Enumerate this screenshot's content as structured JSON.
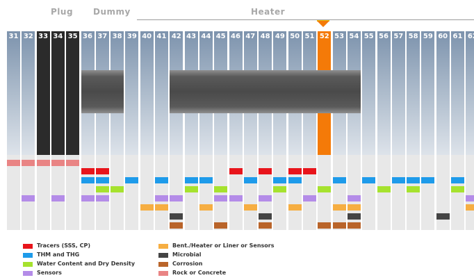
{
  "sections": [
    {
      "label": "Plug"
    },
    {
      "label": "Dummy"
    },
    {
      "label": "Heater"
    }
  ],
  "columns": [
    {
      "label": "31",
      "style": "normal"
    },
    {
      "label": "32",
      "style": "normal"
    },
    {
      "label": "33",
      "style": "dark"
    },
    {
      "label": "34",
      "style": "dark"
    },
    {
      "label": "35",
      "style": "dark"
    },
    {
      "label": "36",
      "style": "normal"
    },
    {
      "label": "37",
      "style": "normal"
    },
    {
      "label": "38",
      "style": "normal"
    },
    {
      "label": "39",
      "style": "normal"
    },
    {
      "label": "40",
      "style": "normal"
    },
    {
      "label": "41",
      "style": "normal"
    },
    {
      "label": "42",
      "style": "normal"
    },
    {
      "label": "43",
      "style": "normal"
    },
    {
      "label": "44",
      "style": "normal"
    },
    {
      "label": "45",
      "style": "normal"
    },
    {
      "label": "46",
      "style": "normal"
    },
    {
      "label": "47",
      "style": "normal"
    },
    {
      "label": "48",
      "style": "normal"
    },
    {
      "label": "49",
      "style": "normal"
    },
    {
      "label": "50",
      "style": "normal"
    },
    {
      "label": "51",
      "style": "normal"
    },
    {
      "label": "52",
      "style": "highlight"
    },
    {
      "label": "53",
      "style": "normal"
    },
    {
      "label": "54",
      "style": "normal"
    },
    {
      "label": "55",
      "style": "normal"
    },
    {
      "label": "56",
      "style": "normal"
    },
    {
      "label": "57",
      "style": "normal"
    },
    {
      "label": "58",
      "style": "normal"
    },
    {
      "label": "59",
      "style": "normal"
    },
    {
      "label": "60",
      "style": "normal"
    },
    {
      "label": "61",
      "style": "normal"
    },
    {
      "label": "62",
      "style": "normal"
    }
  ],
  "cylinders": [
    {
      "name": "dummy",
      "from": "36",
      "to": "38"
    },
    {
      "name": "heater",
      "from": "42",
      "to": "54"
    }
  ],
  "highlight_marker": {
    "column": "52",
    "color": "#f47a08"
  },
  "colors": {
    "tracers": "#e8141b",
    "thm": "#1e9bea",
    "water": "#a6e22e",
    "sensors": "#b48ce8",
    "bent": "#f6ae42",
    "microbial": "#444444",
    "corrosion": "#b9642a",
    "rock": "#e98484",
    "highlight": "#f47a08",
    "dark": "#2b2b2b"
  },
  "sample_rows": [
    {
      "category": "rock",
      "columns": [
        "31",
        "32",
        "33",
        "34",
        "35"
      ]
    },
    {
      "category": "tracers",
      "columns": [
        "36",
        "37",
        "46",
        "48",
        "50",
        "51"
      ]
    },
    {
      "category": "thm",
      "columns": [
        "36",
        "37",
        "39",
        "41",
        "43",
        "44",
        "47",
        "49",
        "50",
        "53",
        "55",
        "57",
        "58",
        "59",
        "61"
      ]
    },
    {
      "category": "water",
      "columns": [
        "37",
        "38",
        "43",
        "45",
        "49",
        "52",
        "56",
        "58",
        "61"
      ]
    },
    {
      "category": "sensors",
      "columns": [
        "32",
        "34",
        "36",
        "37",
        "41",
        "42",
        "45",
        "46",
        "48",
        "51",
        "54",
        "62"
      ]
    },
    {
      "category": "bent",
      "columns": [
        "40",
        "41",
        "44",
        "47",
        "50",
        "53",
        "54",
        "62"
      ]
    },
    {
      "category": "microbial",
      "columns": [
        "42",
        "48",
        "54",
        "60"
      ]
    },
    {
      "category": "corrosion",
      "columns": [
        "42",
        "45",
        "48",
        "52",
        "53",
        "54"
      ]
    }
  ],
  "legend": [
    {
      "key": "tracers",
      "label": "Tracers (SSS, CP)"
    },
    {
      "key": "thm",
      "label": "THM and THG"
    },
    {
      "key": "water",
      "label": "Water Content and Dry Density"
    },
    {
      "key": "sensors",
      "label": "Sensors"
    },
    {
      "key": "bent",
      "label": "Bent./Heater or Liner or Sensors"
    },
    {
      "key": "microbial",
      "label": "Microbial"
    },
    {
      "key": "corrosion",
      "label": "Corrosion"
    },
    {
      "key": "rock",
      "label": "Rock or Concrete"
    }
  ]
}
